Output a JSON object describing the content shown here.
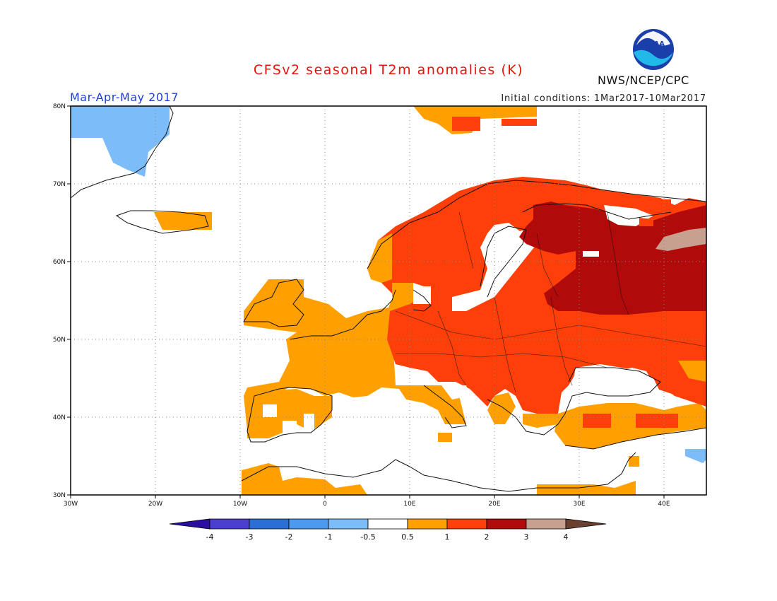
{
  "title": "CFSv2 seasonal T2m anomalies (K)",
  "period": "Mar-Apr-May 2017",
  "initial_conditions": "Initial conditions: 1Mar2017-10Mar2017",
  "organization": "NWS/NCEP/CPC",
  "logo_text": "NOAA",
  "latitude_labels": [
    "80N",
    "70N",
    "60N",
    "50N",
    "40N",
    "30N"
  ],
  "longitude_labels": [
    "30W",
    "20W",
    "10W",
    "0",
    "10E",
    "20E",
    "30E",
    "40E"
  ],
  "colorbar": {
    "labels": [
      "-4",
      "-3",
      "-2",
      "-1",
      "-0.5",
      "0.5",
      "1",
      "2",
      "3",
      "4"
    ],
    "colors": [
      "#2a0fa0",
      "#4b3fd2",
      "#2a6fd6",
      "#4c9af0",
      "#7cbcf8",
      "#ffffff",
      "#ffa000",
      "#ff3f0a",
      "#b00a0a",
      "#c8a090",
      "#6a4030"
    ]
  },
  "anomaly_bins": {
    "cold_small": "#7cbcf8",
    "warm_0p5_1": "#ffa000",
    "warm_1_2": "#ff3f0a",
    "warm_2_3": "#b00a0a",
    "warm_3_4": "#c8a090"
  }
}
